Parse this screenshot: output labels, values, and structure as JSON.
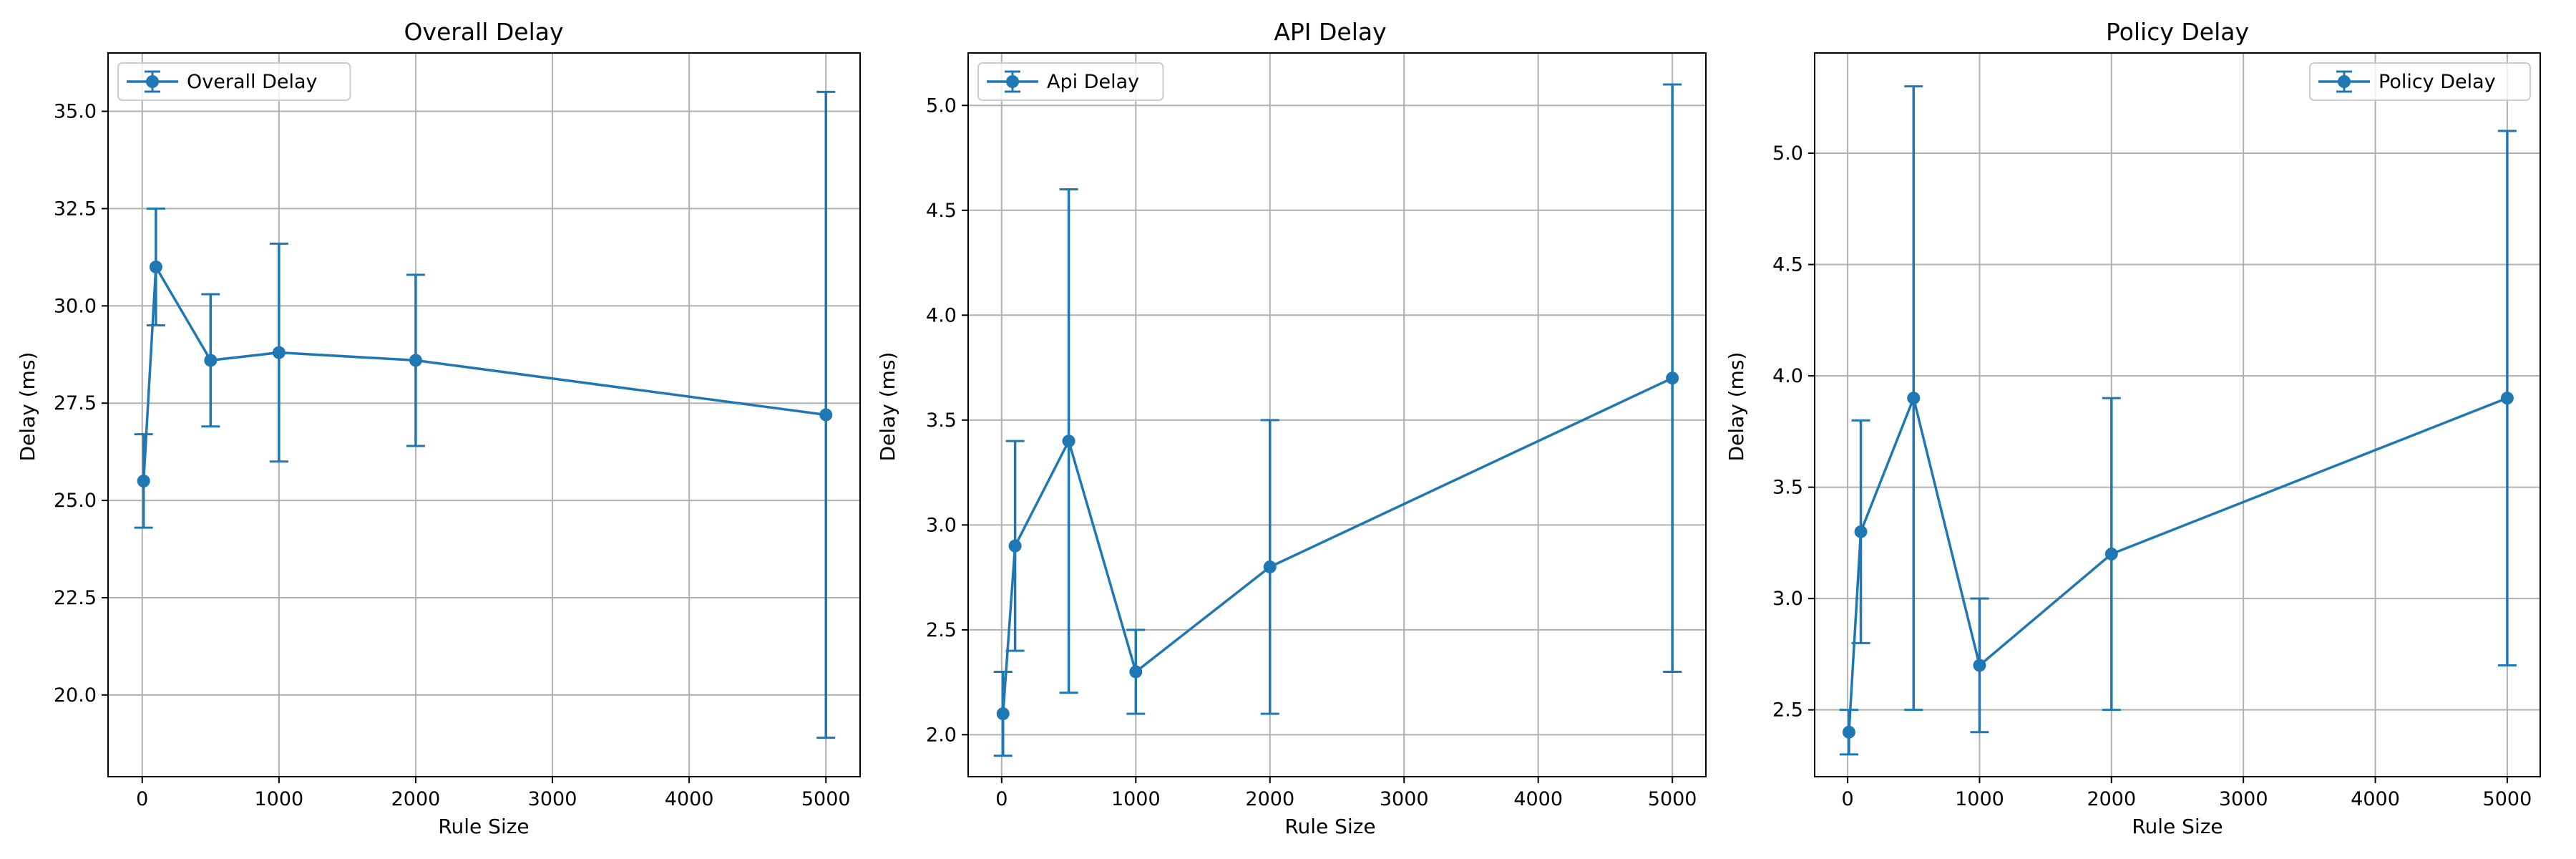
{
  "colors": {
    "series": "#1f77b4",
    "grid": "#b0b0b0",
    "axis": "#000000",
    "legend_border": "#cccccc"
  },
  "chart_data": [
    {
      "type": "line",
      "error_bars": true,
      "title": "Overall Delay",
      "xlabel": "Rule Size",
      "ylabel": "Delay (ms)",
      "xlim": [
        -250,
        5250
      ],
      "ylim": [
        17.9,
        36.5
      ],
      "xticks": [
        0,
        1000,
        2000,
        3000,
        4000,
        5000
      ],
      "yticks": [
        20.0,
        22.5,
        25.0,
        27.5,
        30.0,
        32.5,
        35.0
      ],
      "grid": true,
      "legend": "top-left",
      "series": [
        {
          "name": "Overall Delay",
          "x": [
            10,
            100,
            500,
            1000,
            2000,
            5000
          ],
          "y": [
            25.5,
            31.0,
            28.6,
            28.8,
            28.6,
            27.2
          ],
          "err_low": [
            24.3,
            29.5,
            26.9,
            26.0,
            26.4,
            18.9
          ],
          "err_high": [
            26.7,
            32.5,
            30.3,
            31.6,
            30.8,
            35.5
          ]
        }
      ]
    },
    {
      "type": "line",
      "error_bars": true,
      "title": "API Delay",
      "xlabel": "Rule Size",
      "ylabel": "Delay (ms)",
      "xlim": [
        -250,
        5250
      ],
      "ylim": [
        1.8,
        5.25
      ],
      "xticks": [
        0,
        1000,
        2000,
        3000,
        4000,
        5000
      ],
      "yticks": [
        2.0,
        2.5,
        3.0,
        3.5,
        4.0,
        4.5,
        5.0
      ],
      "grid": true,
      "legend": "top-left",
      "series": [
        {
          "name": "Api Delay",
          "x": [
            10,
            100,
            500,
            1000,
            2000,
            5000
          ],
          "y": [
            2.1,
            2.9,
            3.4,
            2.3,
            2.8,
            3.7
          ],
          "err_low": [
            1.9,
            2.4,
            2.2,
            2.1,
            2.1,
            2.3
          ],
          "err_high": [
            2.3,
            3.4,
            4.6,
            2.5,
            3.5,
            5.1
          ]
        }
      ]
    },
    {
      "type": "line",
      "error_bars": true,
      "title": "Policy Delay",
      "xlabel": "Rule Size",
      "ylabel": "Delay (ms)",
      "xlim": [
        -250,
        5250
      ],
      "ylim": [
        2.2,
        5.45
      ],
      "xticks": [
        0,
        1000,
        2000,
        3000,
        4000,
        5000
      ],
      "yticks": [
        2.5,
        3.0,
        3.5,
        4.0,
        4.5,
        5.0
      ],
      "grid": true,
      "legend": "top-right",
      "series": [
        {
          "name": "Policy Delay",
          "x": [
            10,
            100,
            500,
            1000,
            2000,
            5000
          ],
          "y": [
            2.4,
            3.3,
            3.9,
            2.7,
            3.2,
            3.9
          ],
          "err_low": [
            2.3,
            2.8,
            2.5,
            2.4,
            2.5,
            2.7
          ],
          "err_high": [
            2.5,
            3.8,
            5.3,
            3.0,
            3.9,
            5.1
          ]
        }
      ]
    }
  ]
}
